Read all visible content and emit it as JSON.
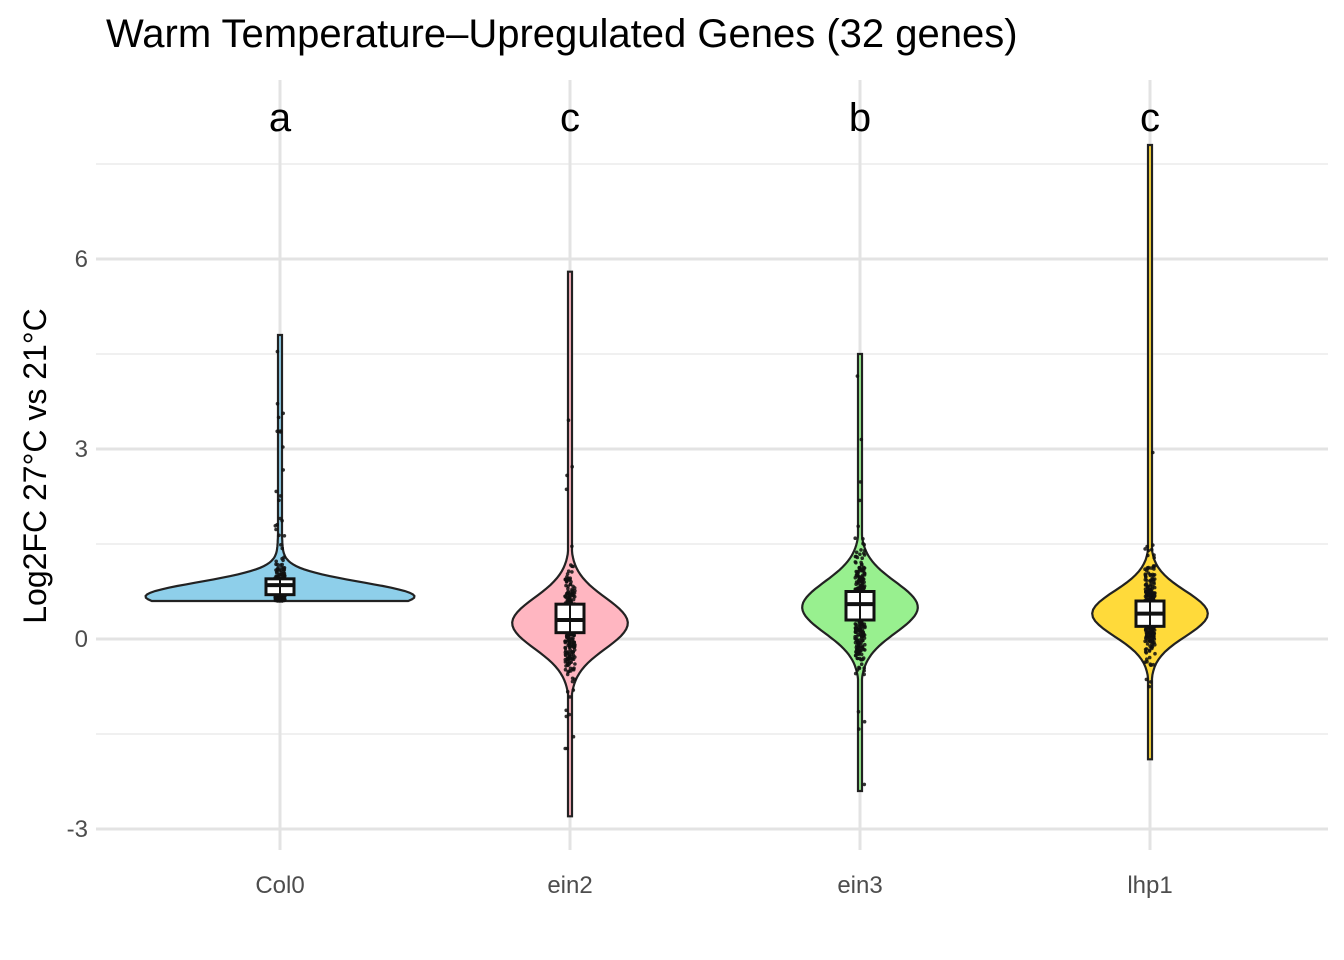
{
  "chart_data": {
    "type": "violin",
    "title": "Warm Temperature–Upregulated Genes (32 genes)",
    "xlabel": "",
    "ylabel": "Log2FC 27°C vs 21°C",
    "ylim": [
      -3.2,
      8.0
    ],
    "y_ticks": [
      -3,
      0,
      3,
      6
    ],
    "y_tick_labels": [
      "-3",
      "0",
      "3",
      "6"
    ],
    "grid": true,
    "legend": "none",
    "categories": [
      "Col0",
      "ein2",
      "ein3",
      "lhp1"
    ],
    "significance_labels": [
      "a",
      "c",
      "b",
      "c"
    ],
    "series": [
      {
        "category": "Col0",
        "color": "#8ecfea",
        "min": 0.6,
        "max": 4.8,
        "q1": 0.7,
        "median": 0.85,
        "q3": 0.95,
        "mode": 0.67
      },
      {
        "category": "ein2",
        "color": "#ffb6c1",
        "min": -2.8,
        "max": 5.8,
        "q1": 0.1,
        "median": 0.3,
        "q3": 0.55,
        "mode": 0.25
      },
      {
        "category": "ein3",
        "color": "#98f08f",
        "min": -2.4,
        "max": 4.5,
        "q1": 0.3,
        "median": 0.55,
        "q3": 0.75,
        "mode": 0.5
      },
      {
        "category": "lhp1",
        "color": "#ffda3a",
        "min": -1.9,
        "max": 7.8,
        "q1": 0.2,
        "median": 0.4,
        "q3": 0.6,
        "mode": 0.4
      }
    ]
  }
}
